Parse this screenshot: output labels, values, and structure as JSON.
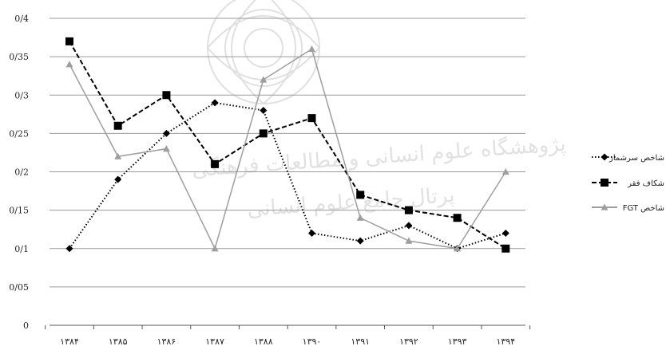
{
  "chart_data": {
    "type": "line",
    "categories": [
      "۱۳۸۴",
      "۱۳۸۵",
      "۱۳۸۶",
      "۱۳۸۷",
      "۱۳۸۸",
      "۱۳۹۰",
      "۱۳۹۱",
      "۱۳۹۲",
      "۱۳۹۳",
      "۱۳۹۴"
    ],
    "yticks": [
      "0",
      "0/05",
      "0/1",
      "0/15",
      "0/2",
      "0/25",
      "0/3",
      "0/35",
      "0/4"
    ],
    "ylim": [
      0,
      0.4
    ],
    "grid": true,
    "legend": "right",
    "series": [
      {
        "name": "شاخص سرشمار",
        "color": "#000000",
        "style": "dotted",
        "marker": "diamond",
        "values": [
          0.1,
          0.19,
          0.25,
          0.29,
          0.28,
          0.12,
          0.11,
          0.13,
          0.1,
          0.12
        ]
      },
      {
        "name": "شکاف فقر",
        "color": "#000000",
        "style": "dashed",
        "marker": "square",
        "values": [
          0.37,
          0.26,
          0.3,
          0.21,
          0.25,
          0.27,
          0.17,
          0.15,
          0.14,
          0.1
        ]
      },
      {
        "name": "شاخص FGT",
        "color": "#9e9e9e",
        "style": "solid",
        "marker": "triangle",
        "values": [
          0.34,
          0.22,
          0.23,
          0.1,
          0.32,
          0.36,
          0.14,
          0.11,
          0.1,
          0.2
        ]
      }
    ]
  },
  "watermark": {
    "line1": "پژوهشگاه علوم انسانی و مطالعات فرهنگی",
    "line2": "پرتال جامع علوم انسانی"
  }
}
